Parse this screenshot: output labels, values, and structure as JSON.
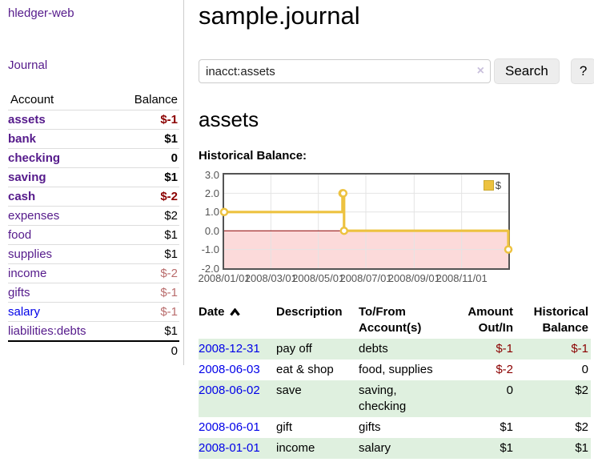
{
  "sidebar": {
    "brand": "hledger-web",
    "nav_journal": "Journal",
    "accounts_table": {
      "headers": [
        "Account",
        "Balance"
      ],
      "rows": [
        {
          "account": "assets",
          "depth": 1,
          "bold": true,
          "link_style": "visited",
          "balance": "$-1",
          "balance_style": "neg-strong"
        },
        {
          "account": "bank",
          "depth": 2,
          "bold": true,
          "link_style": "visited",
          "balance": "$1",
          "balance_style": "pos-strong"
        },
        {
          "account": "checking",
          "depth": 3,
          "bold": true,
          "link_style": "visited",
          "balance": "0",
          "balance_style": "pos-strong"
        },
        {
          "account": "saving",
          "depth": 3,
          "bold": true,
          "link_style": "visited",
          "balance": "$1",
          "balance_style": "pos-strong"
        },
        {
          "account": "cash",
          "depth": 2,
          "bold": true,
          "link_style": "visited",
          "balance": "$-2",
          "balance_style": "neg-strong"
        },
        {
          "account": "expenses",
          "depth": 1,
          "bold": false,
          "link_style": "visited",
          "balance": "$2",
          "balance_style": "pos"
        },
        {
          "account": "food",
          "depth": 2,
          "bold": false,
          "link_style": "visited",
          "balance": "$1",
          "balance_style": "pos"
        },
        {
          "account": "supplies",
          "depth": 2,
          "bold": false,
          "link_style": "visited",
          "balance": "$1",
          "balance_style": "pos"
        },
        {
          "account": "income",
          "depth": 1,
          "bold": false,
          "link_style": "visited",
          "balance": "$-2",
          "balance_style": "neg-muted"
        },
        {
          "account": "gifts",
          "depth": 2,
          "bold": false,
          "link_style": "visited",
          "balance": "$-1",
          "balance_style": "neg-muted"
        },
        {
          "account": "salary",
          "depth": 2,
          "bold": false,
          "link_style": "unvisited",
          "balance": "$-1",
          "balance_style": "neg-muted"
        },
        {
          "account": "liabilities:debts",
          "depth": 1,
          "bold": false,
          "link_style": "visited",
          "balance": "$1",
          "balance_style": "pos"
        }
      ],
      "total": "0"
    }
  },
  "header": {
    "title": "sample.journal"
  },
  "search": {
    "value": "inacct:assets",
    "clear_icon": "×",
    "search_label": "Search",
    "help_label": "?"
  },
  "account_page": {
    "heading": "assets",
    "chart_label": "Historical Balance:"
  },
  "chart_data": {
    "type": "line",
    "step": true,
    "title": "Historical Balance",
    "series": [
      {
        "name": "$",
        "color": "#edc240",
        "points": [
          [
            "2008-01-01",
            1.0
          ],
          [
            "2008-06-01",
            2.0
          ],
          [
            "2008-06-02",
            2.0
          ],
          [
            "2008-06-03",
            0.0
          ],
          [
            "2008-12-31",
            -1.0
          ]
        ]
      }
    ],
    "x_ticks": [
      "2008/01/01",
      "2008/03/01",
      "2008/05/01",
      "2008/07/01",
      "2008/09/01",
      "2008/11/01"
    ],
    "y_ticks": [
      3.0,
      2.0,
      1.0,
      0.0,
      -1.0,
      -2.0
    ],
    "xlim": [
      "2008-01-01",
      "2008-12-31"
    ],
    "ylim": [
      -2,
      3
    ],
    "grid": true,
    "legend": {
      "label": "$",
      "position": "top-right"
    },
    "negative_region_color": "#fcdada",
    "zero_line_color": "#8b0000",
    "grid_color": "#e4e4e4"
  },
  "register_table": {
    "headers": [
      "Date",
      "Description",
      "To/From Account(s)",
      "Amount Out/In",
      "Historical Balance"
    ],
    "sort_column": "Date",
    "sort_direction": "ascending",
    "rows": [
      {
        "date": "2008-12-31",
        "description": "pay off",
        "accounts": "debts",
        "amount": "$-1",
        "amount_neg": true,
        "balance": "$-1",
        "balance_neg": true,
        "green": true
      },
      {
        "date": "2008-06-03",
        "description": "eat & shop",
        "accounts": "food, supplies",
        "amount": "$-2",
        "amount_neg": true,
        "balance": "0",
        "balance_neg": false,
        "green": false
      },
      {
        "date": "2008-06-02",
        "description": "save",
        "accounts": "saving, checking",
        "amount": "0",
        "amount_neg": false,
        "balance": "$2",
        "balance_neg": false,
        "green": true
      },
      {
        "date": "2008-06-01",
        "description": "gift",
        "accounts": "gifts",
        "amount": "$1",
        "amount_neg": false,
        "balance": "$2",
        "balance_neg": false,
        "green": false
      },
      {
        "date": "2008-01-01",
        "description": "income",
        "accounts": "salary",
        "amount": "$1",
        "amount_neg": false,
        "balance": "$1",
        "balance_neg": false,
        "green": true
      }
    ]
  },
  "colors": {
    "link_visited": "#551a8b",
    "link_unvisited": "#0000e8",
    "negative_strong": "#8b0000",
    "negative_muted": "#b96c6c",
    "row_green": "#dff0df",
    "series_gold": "#edc240"
  }
}
